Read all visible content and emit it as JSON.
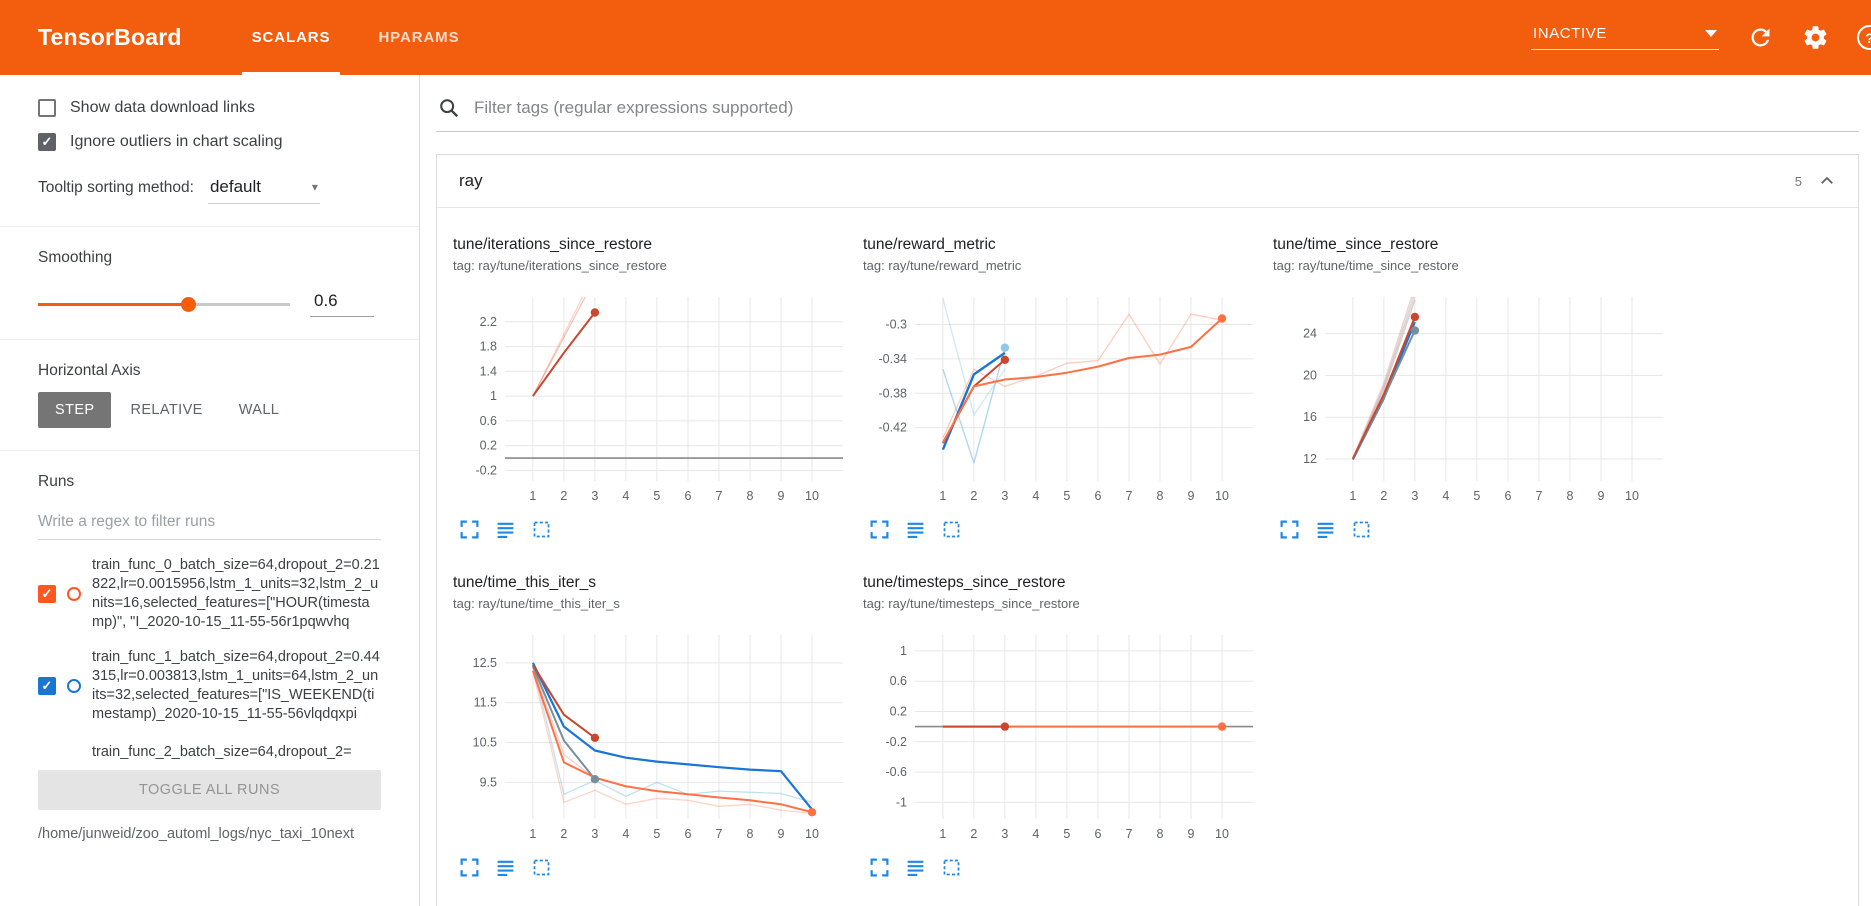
{
  "header": {
    "logo": "TensorBoard",
    "tabs": [
      {
        "label": "SCALARS",
        "active": true
      },
      {
        "label": "HPARAMS",
        "active": false
      }
    ],
    "status": "INACTIVE"
  },
  "icons": {
    "header": [
      "refresh-icon",
      "settings-gear-icon",
      "help-icon"
    ],
    "search": "magnifier",
    "chart_toolbar": [
      "expand-chart-icon",
      "data-table-icon",
      "fit-domain-icon"
    ],
    "category_collapse": "chevron-up"
  },
  "colors": {
    "header_bg": "#f25d0e",
    "accent_blue": "#1e88e5",
    "run_colors": {
      "train_func_0": "#ff5722",
      "train_func_1": "#1976d2"
    },
    "series": {
      "red": "#c9472f",
      "blue": "#1976d2",
      "orange": "#ff7043",
      "steel": "#78909c",
      "light_blue": "#8ec8e8",
      "gray": "#8a8a8a"
    }
  },
  "sidebar": {
    "checkboxes": [
      {
        "label": "Show data download links",
        "checked": false
      },
      {
        "label": "Ignore outliers in chart scaling",
        "checked": true
      }
    ],
    "tooltip_sort": {
      "label": "Tooltip sorting method:",
      "value": "default"
    },
    "smoothing": {
      "label": "Smoothing",
      "value": "0.6",
      "percent": 60
    },
    "horizontal_axis": {
      "label": "Horizontal Axis",
      "options": [
        "STEP",
        "RELATIVE",
        "WALL"
      ],
      "selected": "STEP"
    },
    "runs": {
      "label": "Runs",
      "filter_placeholder": "Write a regex to filter runs",
      "items": [
        {
          "name": "train_func_0_batch_size=64,dropout_2=0.21822,lr=0.0015956,lstm_1_units=32,lstm_2_units=16,selected_features=[\"HOUR(timestamp)\", \"I_2020-10-15_11-55-56r1pqwvhq",
          "checked": true,
          "color": "#ff5722",
          "partial": false
        },
        {
          "name": "train_func_1_batch_size=64,dropout_2=0.44315,lr=0.003813,lstm_1_units=64,lstm_2_units=32,selected_features=[\"IS_WEEKEND(timestamp)_2020-10-15_11-55-56vlqdqxpi",
          "checked": true,
          "color": "#1976d2",
          "partial": false
        },
        {
          "name": "train_func_2_batch_size=64,dropout_2=",
          "checked": true,
          "color": "#ff7043",
          "partial": true
        }
      ],
      "toggle_all": "TOGGLE ALL RUNS",
      "log_path": "/home/junweid/zoo_automl_logs/nyc_taxi_10next"
    }
  },
  "main": {
    "filter_placeholder": "Filter tags (regular expressions supported)",
    "category": {
      "name": "ray",
      "count": "5"
    }
  },
  "chart_data": [
    {
      "type": "line",
      "title": "tune/iterations_since_restore",
      "tag": "tag: ray/tune/iterations_since_restore",
      "xlim": [
        0.1,
        11
      ],
      "ylim": [
        -0.37,
        2.6
      ],
      "x_ticks": [
        1,
        2,
        3,
        4,
        5,
        6,
        7,
        8,
        9,
        10
      ],
      "y_ticks": [
        -0.2,
        0.2,
        0.6,
        1,
        1.4,
        1.8,
        2.2
      ],
      "series": [
        {
          "run": "constant-zero",
          "color": "#8a8a8a",
          "width": 1.6,
          "opacity": 1,
          "points": [
            [
              0.1,
              0
            ],
            [
              11,
              0
            ]
          ]
        },
        {
          "run": "raw-orange",
          "color": "#ff7043",
          "width": 1.3,
          "opacity": 0.3,
          "points": [
            [
              1,
              1
            ],
            [
              2,
              2
            ],
            [
              3,
              3
            ]
          ]
        },
        {
          "run": "raw-red",
          "color": "#c9472f",
          "width": 1.3,
          "opacity": 0.3,
          "points": [
            [
              1,
              1
            ],
            [
              2,
              1.95
            ],
            [
              3,
              2.9
            ]
          ]
        },
        {
          "run": "smoothed-red",
          "color": "#c9472f",
          "width": 2,
          "opacity": 1,
          "dot": true,
          "points": [
            [
              1,
              1
            ],
            [
              2,
              1.7
            ],
            [
              3,
              2.35
            ]
          ]
        }
      ]
    },
    {
      "type": "line",
      "title": "tune/reward_metric",
      "tag": "tag: ray/tune/reward_metric",
      "xlim": [
        0.1,
        11
      ],
      "ylim": [
        -0.482,
        -0.268
      ],
      "x_ticks": [
        1,
        2,
        3,
        4,
        5,
        6,
        7,
        8,
        9,
        10
      ],
      "y_ticks": [
        -0.42,
        -0.38,
        -0.34,
        -0.3
      ],
      "series": [
        {
          "run": "raw-lightblue-a",
          "color": "#8ec8e8",
          "width": 1.4,
          "opacity": 0.7,
          "dot": true,
          "points": [
            [
              1,
              -0.352
            ],
            [
              2,
              -0.461
            ],
            [
              3,
              -0.327
            ]
          ]
        },
        {
          "run": "raw-lightblue-b",
          "color": "#8ec8e8",
          "width": 1.4,
          "opacity": 0.4,
          "points": [
            [
              1,
              -0.27
            ],
            [
              2,
              -0.405
            ],
            [
              3,
              -0.352
            ]
          ]
        },
        {
          "run": "raw-orange",
          "color": "#ff7043",
          "width": 1.3,
          "opacity": 0.35,
          "points": [
            [
              1,
              -0.432
            ],
            [
              2,
              -0.352
            ],
            [
              3,
              -0.372
            ],
            [
              4,
              -0.36
            ],
            [
              5,
              -0.345
            ],
            [
              6,
              -0.342
            ],
            [
              7,
              -0.288
            ],
            [
              8,
              -0.346
            ],
            [
              9,
              -0.288
            ],
            [
              10,
              -0.295
            ]
          ]
        },
        {
          "run": "smoothed-blue",
          "color": "#1976d2",
          "width": 2.4,
          "opacity": 1,
          "points": [
            [
              1,
              -0.4455
            ],
            [
              2,
              -0.358
            ],
            [
              3,
              -0.333
            ]
          ]
        },
        {
          "run": "smoothed-red",
          "color": "#c9472f",
          "width": 2,
          "opacity": 1,
          "dot": true,
          "points": [
            [
              1,
              -0.438
            ],
            [
              2,
              -0.372
            ],
            [
              3,
              -0.341
            ]
          ]
        },
        {
          "run": "smoothed-orange",
          "color": "#ff7043",
          "width": 2,
          "opacity": 1,
          "dot": true,
          "points": [
            [
              1,
              -0.437
            ],
            [
              2,
              -0.372
            ],
            [
              3,
              -0.364
            ],
            [
              4,
              -0.361
            ],
            [
              5,
              -0.356
            ],
            [
              6,
              -0.349
            ],
            [
              7,
              -0.339
            ],
            [
              8,
              -0.335
            ],
            [
              9,
              -0.326
            ],
            [
              10,
              -0.293
            ]
          ]
        }
      ]
    },
    {
      "type": "line",
      "title": "tune/time_since_restore",
      "tag": "tag: ray/tune/time_since_restore",
      "xlim": [
        0.1,
        11
      ],
      "ylim": [
        9.9,
        27.5
      ],
      "x_ticks": [
        1,
        2,
        3,
        4,
        5,
        6,
        7,
        8,
        9,
        10
      ],
      "y_ticks": [
        12,
        16,
        20,
        24
      ],
      "series": [
        {
          "run": "raw-red",
          "color": "#c9472f",
          "width": 1.3,
          "opacity": 0.25,
          "points": [
            [
              1,
              12.1
            ],
            [
              2,
              19.3
            ],
            [
              3,
              28.5
            ]
          ]
        },
        {
          "run": "raw-lightblue",
          "color": "#8ec8e8",
          "width": 1.3,
          "opacity": 0.5,
          "points": [
            [
              1,
              12
            ],
            [
              2,
              19
            ],
            [
              3,
              28
            ]
          ]
        },
        {
          "run": "raw-gray",
          "color": "#9e9e9e",
          "width": 1.3,
          "opacity": 0.45,
          "points": [
            [
              1,
              12.05
            ],
            [
              2,
              18.6
            ],
            [
              3,
              27.2
            ]
          ]
        },
        {
          "run": "raw-orange",
          "color": "#ff7043",
          "width": 1.3,
          "opacity": 0.3,
          "points": [
            [
              1,
              11.95
            ],
            [
              2,
              18.9
            ],
            [
              3,
              27.6
            ]
          ]
        },
        {
          "run": "smoothed-blue",
          "color": "#1976d2",
          "width": 2,
          "opacity": 1,
          "points": [
            [
              1,
              11.95
            ],
            [
              2,
              17.8
            ],
            [
              3,
              25.1
            ]
          ]
        },
        {
          "run": "smoothed-steel",
          "color": "#78909c",
          "width": 2,
          "opacity": 1,
          "dot": true,
          "points": [
            [
              1,
              12
            ],
            [
              2,
              17.9
            ],
            [
              3,
              24.3
            ]
          ]
        },
        {
          "run": "smoothed-red",
          "color": "#c9472f",
          "width": 2,
          "opacity": 1,
          "dot": true,
          "points": [
            [
              1,
              12.05
            ],
            [
              2,
              18.2
            ],
            [
              3,
              25.6
            ]
          ]
        }
      ]
    },
    {
      "type": "line",
      "title": "tune/time_this_iter_s",
      "tag": "tag: ray/tune/time_this_iter_s",
      "xlim": [
        0.1,
        11
      ],
      "ylim": [
        8.58,
        13.2
      ],
      "x_ticks": [
        1,
        2,
        3,
        4,
        5,
        6,
        7,
        8,
        9,
        10
      ],
      "y_ticks": [
        9.5,
        10.5,
        11.5,
        12.5
      ],
      "series": [
        {
          "run": "raw-lightblue",
          "color": "#8ec8e8",
          "width": 1.3,
          "opacity": 0.55,
          "points": [
            [
              1,
              12.45
            ],
            [
              2,
              9.2
            ],
            [
              3,
              9.55
            ],
            [
              4,
              9.15
            ],
            [
              5,
              9.5
            ],
            [
              6,
              9.2
            ],
            [
              7,
              9.28
            ],
            [
              8,
              9.25
            ],
            [
              9,
              9.22
            ],
            [
              10,
              9.0
            ]
          ]
        },
        {
          "run": "raw-orange",
          "color": "#ff7043",
          "width": 1.3,
          "opacity": 0.3,
          "points": [
            [
              1,
              12.3
            ],
            [
              2,
              9.0
            ],
            [
              3,
              9.3
            ],
            [
              4,
              8.95
            ],
            [
              5,
              9.1
            ],
            [
              6,
              9.05
            ],
            [
              7,
              8.9
            ],
            [
              8,
              8.95
            ],
            [
              9,
              8.8
            ],
            [
              10,
              8.72
            ]
          ]
        },
        {
          "run": "raw-red",
          "color": "#c9472f",
          "width": 1.3,
          "opacity": 0.25,
          "points": [
            [
              1,
              12.4
            ],
            [
              2,
              10.2
            ],
            [
              3,
              9.6
            ]
          ]
        },
        {
          "run": "smoothed-steel",
          "color": "#78909c",
          "width": 2,
          "opacity": 1,
          "dot": true,
          "points": [
            [
              1,
              12.42
            ],
            [
              2,
              10.55
            ],
            [
              3,
              9.58
            ]
          ]
        },
        {
          "run": "smoothed-blue",
          "color": "#1976d2",
          "width": 2.2,
          "opacity": 1,
          "points": [
            [
              1,
              12.5
            ],
            [
              2,
              10.9
            ],
            [
              3,
              10.3
            ],
            [
              4,
              10.12
            ],
            [
              5,
              10.02
            ],
            [
              6,
              9.95
            ],
            [
              7,
              9.88
            ],
            [
              8,
              9.82
            ],
            [
              9,
              9.78
            ],
            [
              10,
              8.82
            ]
          ]
        },
        {
          "run": "smoothed-red",
          "color": "#c9472f",
          "width": 2,
          "opacity": 1,
          "dot": true,
          "points": [
            [
              1,
              12.45
            ],
            [
              2,
              11.2
            ],
            [
              3,
              10.62
            ]
          ]
        },
        {
          "run": "smoothed-orange",
          "color": "#ff7043",
          "width": 2,
          "opacity": 1,
          "dot": true,
          "points": [
            [
              1,
              12.3
            ],
            [
              2,
              10.0
            ],
            [
              3,
              9.62
            ],
            [
              4,
              9.4
            ],
            [
              5,
              9.28
            ],
            [
              6,
              9.2
            ],
            [
              7,
              9.12
            ],
            [
              8,
              9.05
            ],
            [
              9,
              8.95
            ],
            [
              10,
              8.75
            ]
          ]
        }
      ]
    },
    {
      "type": "line",
      "title": "tune/timesteps_since_restore",
      "tag": "tag: ray/tune/timesteps_since_restore",
      "xlim": [
        0.1,
        11
      ],
      "ylim": [
        -1.22,
        1.21
      ],
      "x_ticks": [
        1,
        2,
        3,
        4,
        5,
        6,
        7,
        8,
        9,
        10
      ],
      "y_ticks": [
        -1,
        -0.6,
        -0.2,
        0.2,
        0.6,
        1
      ],
      "series": [
        {
          "run": "constant-zero-gray",
          "color": "#8a8a8a",
          "width": 1.6,
          "opacity": 1,
          "points": [
            [
              0.1,
              0
            ],
            [
              11,
              0
            ]
          ]
        },
        {
          "run": "orange-flat",
          "color": "#ff7043",
          "width": 2,
          "opacity": 1,
          "dot": true,
          "points": [
            [
              1,
              0
            ],
            [
              10,
              0
            ]
          ]
        },
        {
          "run": "red-flat",
          "color": "#c9472f",
          "width": 2,
          "opacity": 1,
          "dot": true,
          "points": [
            [
              1,
              0
            ],
            [
              3,
              0
            ]
          ]
        }
      ]
    }
  ]
}
